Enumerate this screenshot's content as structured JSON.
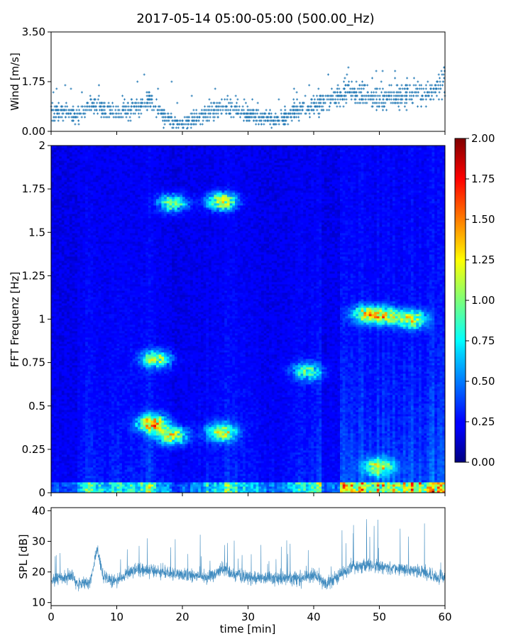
{
  "figure": {
    "title": "2017-05-14 05:00-05:00 (500.00_Hz)",
    "colors": {
      "series": "#1f77b4",
      "frame": "#000000",
      "background": "#ffffff"
    }
  },
  "chart_data": [
    {
      "id": "wind",
      "type": "scatter",
      "title": "",
      "xlabel": "",
      "ylabel": "Wind [m/s]",
      "xlim": [
        0,
        60
      ],
      "ylim": [
        0,
        3.5
      ],
      "yticks": [
        "0.00",
        "1.75",
        "3.50"
      ],
      "ytick_values": [
        0,
        1.75,
        3.5
      ],
      "xtick_values": [
        0,
        10,
        20,
        30,
        40,
        50,
        60
      ],
      "grid": false,
      "marker": "+",
      "trend": {
        "x": [
          0,
          4,
          5,
          6,
          8,
          10,
          12,
          14,
          15,
          17,
          19,
          21,
          23,
          25,
          27,
          29,
          31,
          33,
          35,
          37,
          39,
          41,
          43,
          45,
          47,
          50,
          53,
          55,
          57,
          60
        ],
        "y": [
          0.7,
          0.55,
          0.75,
          1.0,
          0.75,
          0.7,
          0.8,
          0.95,
          1.1,
          0.6,
          0.3,
          0.35,
          0.55,
          0.75,
          0.85,
          0.7,
          0.5,
          0.4,
          0.4,
          0.7,
          0.85,
          1.0,
          1.1,
          1.4,
          1.3,
          1.2,
          1.25,
          1.4,
          1.3,
          1.8
        ]
      }
    },
    {
      "id": "spectrogram",
      "type": "heatmap",
      "title": "",
      "xlabel": "",
      "ylabel": "FFT Frequenz [Hz]",
      "xlim": [
        0,
        60
      ],
      "ylim": [
        0,
        2
      ],
      "yticks": [
        "0",
        "0.25",
        "0.5",
        "0.75",
        "1",
        "1.25",
        "1.5",
        "1.75",
        "2"
      ],
      "ytick_values": [
        0,
        0.25,
        0.5,
        0.75,
        1,
        1.25,
        1.5,
        1.75,
        2
      ],
      "colormap": "jet",
      "clim": [
        0,
        2
      ],
      "colorbar_ticks": [
        "0.00",
        "0.25",
        "0.50",
        "0.75",
        "1.00",
        "1.25",
        "1.50",
        "1.75",
        "2.00"
      ],
      "colorbar_tick_values": [
        0,
        0.25,
        0.5,
        0.75,
        1,
        1.25,
        1.5,
        1.75,
        2
      ],
      "hotspots": [
        {
          "t": 15.5,
          "f": 0.4,
          "v": 1.4
        },
        {
          "t": 18.5,
          "f": 0.33,
          "v": 1.1
        },
        {
          "t": 26,
          "f": 0.35,
          "v": 1.1
        },
        {
          "t": 26,
          "f": 1.68,
          "v": 1.2
        },
        {
          "t": 18.5,
          "f": 1.67,
          "v": 0.95
        },
        {
          "t": 39,
          "f": 0.7,
          "v": 0.8
        },
        {
          "t": 51,
          "f": 1.02,
          "v": 1.0
        },
        {
          "t": 55,
          "f": 1.0,
          "v": 1.1
        },
        {
          "t": 48,
          "f": 1.03,
          "v": 1.0
        },
        {
          "t": 16,
          "f": 0.77,
          "v": 1.0
        },
        {
          "t": 50,
          "f": 0.15,
          "v": 1.0
        }
      ]
    },
    {
      "id": "spl",
      "type": "line",
      "title": "",
      "xlabel": "time [min]",
      "ylabel": "SPL [dB]",
      "xlim": [
        0,
        60
      ],
      "ylim": [
        9,
        41
      ],
      "xticks": [
        "0",
        "10",
        "20",
        "30",
        "40",
        "50",
        "60"
      ],
      "xtick_values": [
        0,
        10,
        20,
        30,
        40,
        50,
        60
      ],
      "yticks": [
        "10",
        "20",
        "30",
        "40"
      ],
      "ytick_values": [
        10,
        20,
        30,
        40
      ],
      "grid": false,
      "baseline": {
        "x": [
          0,
          3,
          4,
          6,
          7,
          8,
          10,
          12,
          14,
          16,
          18,
          20,
          22,
          24,
          26,
          28,
          30,
          32,
          34,
          36,
          38,
          40,
          42,
          44,
          46,
          48,
          50,
          52,
          54,
          56,
          58,
          60
        ],
        "y": [
          17,
          19,
          16,
          17,
          28,
          18,
          17,
          20,
          21,
          20,
          20,
          19,
          19,
          18,
          21,
          19,
          18,
          18,
          18,
          18,
          18,
          19,
          16,
          19,
          22,
          22,
          22,
          21,
          21,
          20,
          19,
          18
        ]
      }
    }
  ]
}
